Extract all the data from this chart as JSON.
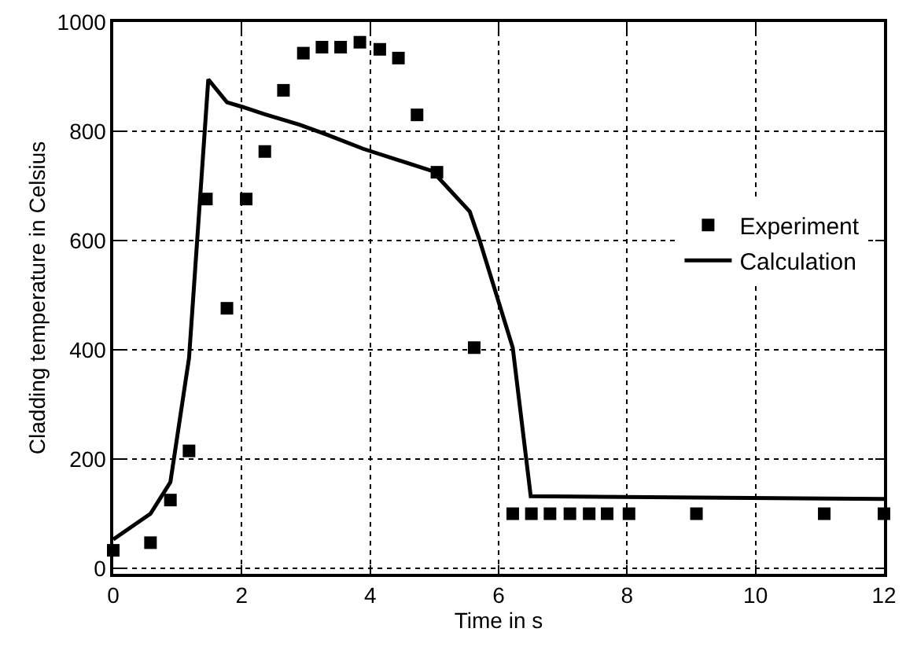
{
  "chart_data": {
    "type": "scatter",
    "xlabel": "Time in s",
    "ylabel": "Cladding temperature in Celsius",
    "xlim": [
      0,
      12
    ],
    "xticks": [
      0,
      2,
      4,
      6,
      8,
      10,
      12
    ],
    "ylim": [
      -10,
      1000
    ],
    "yticks": [
      0,
      200,
      400,
      600,
      800,
      1000
    ],
    "grid": true,
    "legend": "right",
    "series": [
      {
        "name": "Experiment",
        "marker": "square",
        "color": "#000000",
        "x": [
          0,
          0.58,
          0.89,
          1.18,
          1.45,
          1.77,
          2.07,
          2.36,
          2.65,
          2.96,
          3.25,
          3.54,
          3.84,
          4.15,
          4.44,
          4.73,
          5.04,
          5.62,
          6.22,
          6.51,
          6.8,
          7.11,
          7.41,
          7.69,
          8.03,
          9.08,
          11.07,
          12
        ],
        "values": [
          33,
          47,
          125,
          215,
          676,
          476,
          676,
          763,
          875,
          943,
          954,
          954,
          963,
          950,
          934,
          830,
          725,
          404,
          100,
          100,
          100,
          100,
          100,
          100,
          100,
          100,
          100,
          100
        ]
      },
      {
        "name": "Calculation",
        "type": "line",
        "marker": "none",
        "color": "#000000",
        "line_style": "solid",
        "x": [
          0,
          0.58,
          0.89,
          1.18,
          1.48,
          1.77,
          2.0,
          2.36,
          2.9,
          3.32,
          3.89,
          4.97,
          5.55,
          5.7,
          6.22,
          6.5,
          12
        ],
        "values": [
          53,
          100,
          158,
          385,
          895,
          853,
          845,
          831,
          812,
          794,
          768,
          727,
          653,
          602,
          404,
          132,
          127
        ]
      }
    ]
  }
}
